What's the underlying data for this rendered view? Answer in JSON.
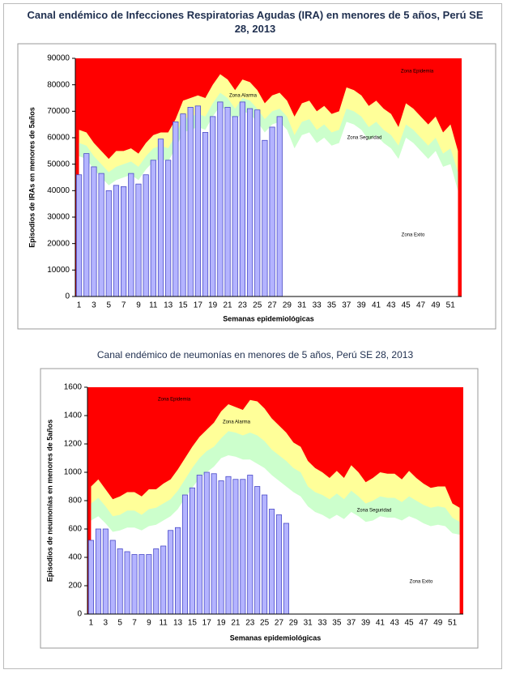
{
  "chart_data": [
    {
      "type": "bar",
      "title": "Canal endémico de Infecciones Respiratorias Agudas (IRA) en menores de 5 años, Perú SE 28, 2013",
      "x_label": "Semanas epidemiológicas",
      "y_label": "Episodios de IRAs en menores de 5años",
      "categories": [
        1,
        null,
        3,
        null,
        5,
        null,
        7,
        null,
        9,
        null,
        11,
        null,
        13,
        null,
        15,
        null,
        17,
        null,
        19,
        null,
        21,
        null,
        23,
        null,
        25,
        null,
        27,
        null,
        29,
        null,
        31,
        null,
        33,
        null,
        35,
        null,
        37,
        null,
        39,
        null,
        41,
        null,
        43,
        null,
        45,
        null,
        47,
        null,
        49,
        null,
        51,
        null
      ],
      "bars": {
        "color": "#b4b4ff",
        "values": [
          46000,
          54000,
          49000,
          46500,
          40000,
          42000,
          41500,
          46500,
          42500,
          46000,
          51500,
          59500,
          51500,
          66000,
          69000,
          71500,
          72000,
          62000,
          68000,
          73500,
          71500,
          68000,
          73500,
          71000,
          70500,
          59000,
          64000,
          68000,
          null,
          null,
          null,
          null,
          null,
          null,
          null,
          null,
          null,
          null,
          null,
          null,
          null,
          null,
          null,
          null,
          null,
          null,
          null,
          null,
          null,
          null,
          null,
          null
        ]
      },
      "zones": [
        {
          "name": "Zona Epidemia",
          "color": "#ff0000"
        },
        {
          "name": "Zona Alarma",
          "color": "#ffff99",
          "values": [
            63000,
            62000,
            58000,
            55000,
            52000,
            55000,
            55000,
            56000,
            54000,
            58000,
            61000,
            62000,
            62000,
            67000,
            74000,
            75000,
            76000,
            75000,
            80000,
            84000,
            82000,
            78000,
            82000,
            81000,
            78000,
            73000,
            76000,
            77000,
            74000,
            68000,
            73000,
            74000,
            70000,
            72000,
            69000,
            70000,
            79000,
            78000,
            76000,
            72000,
            74000,
            71000,
            69000,
            64000,
            73000,
            71000,
            68000,
            65000,
            68000,
            62000,
            65000,
            55000
          ]
        },
        {
          "name": "Zona Seguridad",
          "color": "#ccffcc",
          "values": [
            58000,
            57000,
            53000,
            50000,
            47000,
            49000,
            50000,
            51000,
            49000,
            53000,
            56000,
            57000,
            56000,
            61000,
            67000,
            68000,
            69000,
            68000,
            73000,
            77000,
            75000,
            71000,
            75000,
            74000,
            71000,
            67000,
            70000,
            71000,
            68000,
            61000,
            66000,
            67000,
            63000,
            65000,
            62000,
            63000,
            71000,
            70000,
            68000,
            64000,
            66000,
            63000,
            61000,
            57000,
            65000,
            63000,
            60000,
            57000,
            60000,
            54000,
            56000,
            47000
          ]
        },
        {
          "name": "Zona Exito",
          "color": "#ffffff",
          "values": [
            53000,
            52000,
            48000,
            45000,
            42000,
            44000,
            45000,
            46000,
            44000,
            48000,
            51000,
            52000,
            51000,
            56000,
            62000,
            63000,
            64000,
            63000,
            68000,
            72000,
            70000,
            66000,
            70000,
            69000,
            66000,
            62000,
            65000,
            66000,
            63000,
            56000,
            61000,
            62000,
            58000,
            60000,
            57000,
            58000,
            66000,
            65000,
            63000,
            59000,
            61000,
            58000,
            56000,
            52000,
            60000,
            58000,
            55000,
            52000,
            55000,
            49000,
            50000,
            40000
          ]
        }
      ],
      "ylim": [
        0,
        90000
      ],
      "yticks": [
        0,
        10000,
        20000,
        30000,
        40000,
        50000,
        60000,
        70000,
        80000,
        90000
      ]
    },
    {
      "type": "bar",
      "title": "Canal endémico de neumonías en menores de 5 años, Perú SE 28, 2013",
      "x_label": "Semanas epidemiológicas",
      "y_label": "Episodios de neumonías en menores de 5años",
      "categories": [
        1,
        null,
        3,
        null,
        5,
        null,
        7,
        null,
        9,
        null,
        11,
        null,
        13,
        null,
        15,
        null,
        17,
        null,
        19,
        null,
        21,
        null,
        23,
        null,
        25,
        null,
        27,
        null,
        29,
        null,
        31,
        null,
        33,
        null,
        35,
        null,
        37,
        null,
        39,
        null,
        41,
        null,
        43,
        null,
        45,
        null,
        47,
        null,
        49,
        null,
        51,
        null
      ],
      "bars": {
        "color": "#b4b4ff",
        "values": [
          520,
          600,
          600,
          520,
          460,
          440,
          420,
          420,
          420,
          460,
          480,
          590,
          610,
          840,
          890,
          980,
          1000,
          990,
          940,
          970,
          950,
          950,
          980,
          900,
          840,
          740,
          700,
          640,
          null,
          null,
          null,
          null,
          null,
          null,
          null,
          null,
          null,
          null,
          null,
          null,
          null,
          null,
          null,
          null,
          null,
          null,
          null,
          null,
          null,
          null,
          null,
          null
        ]
      },
      "zones": [
        {
          "name": "Zona Epidemia",
          "color": "#ff0000"
        },
        {
          "name": "Zona Alarma",
          "color": "#ffff99",
          "values": [
            900,
            950,
            880,
            810,
            830,
            860,
            860,
            830,
            880,
            880,
            920,
            950,
            1020,
            1100,
            1180,
            1250,
            1300,
            1350,
            1430,
            1480,
            1460,
            1440,
            1510,
            1500,
            1450,
            1380,
            1330,
            1280,
            1210,
            1180,
            1080,
            1030,
            1000,
            960,
            1010,
            960,
            1050,
            1000,
            930,
            960,
            1000,
            990,
            990,
            950,
            1010,
            960,
            920,
            890,
            900,
            900,
            780,
            750
          ]
        },
        {
          "name": "Zona Seguridad",
          "color": "#ccffcc",
          "values": [
            780,
            820,
            760,
            690,
            700,
            730,
            730,
            700,
            740,
            750,
            780,
            810,
            870,
            950,
            1030,
            1100,
            1150,
            1180,
            1240,
            1290,
            1280,
            1260,
            1280,
            1260,
            1220,
            1160,
            1120,
            1080,
            1030,
            1000,
            900,
            860,
            840,
            810,
            850,
            810,
            870,
            830,
            780,
            800,
            830,
            820,
            820,
            790,
            830,
            800,
            770,
            750,
            760,
            750,
            680,
            650
          ]
        },
        {
          "name": "Zona Exito",
          "color": "#ffffff",
          "values": [
            660,
            690,
            640,
            580,
            590,
            610,
            610,
            590,
            620,
            630,
            660,
            690,
            740,
            820,
            890,
            960,
            1000,
            1040,
            1100,
            1120,
            1110,
            1090,
            1090,
            1060,
            1030,
            980,
            940,
            900,
            860,
            830,
            760,
            720,
            700,
            670,
            700,
            670,
            720,
            690,
            650,
            660,
            690,
            680,
            680,
            660,
            690,
            670,
            640,
            620,
            630,
            620,
            570,
            560
          ]
        }
      ],
      "ylim": [
        0,
        1600
      ],
      "yticks": [
        0,
        200,
        400,
        600,
        800,
        1000,
        1200,
        1400,
        1600
      ]
    }
  ]
}
